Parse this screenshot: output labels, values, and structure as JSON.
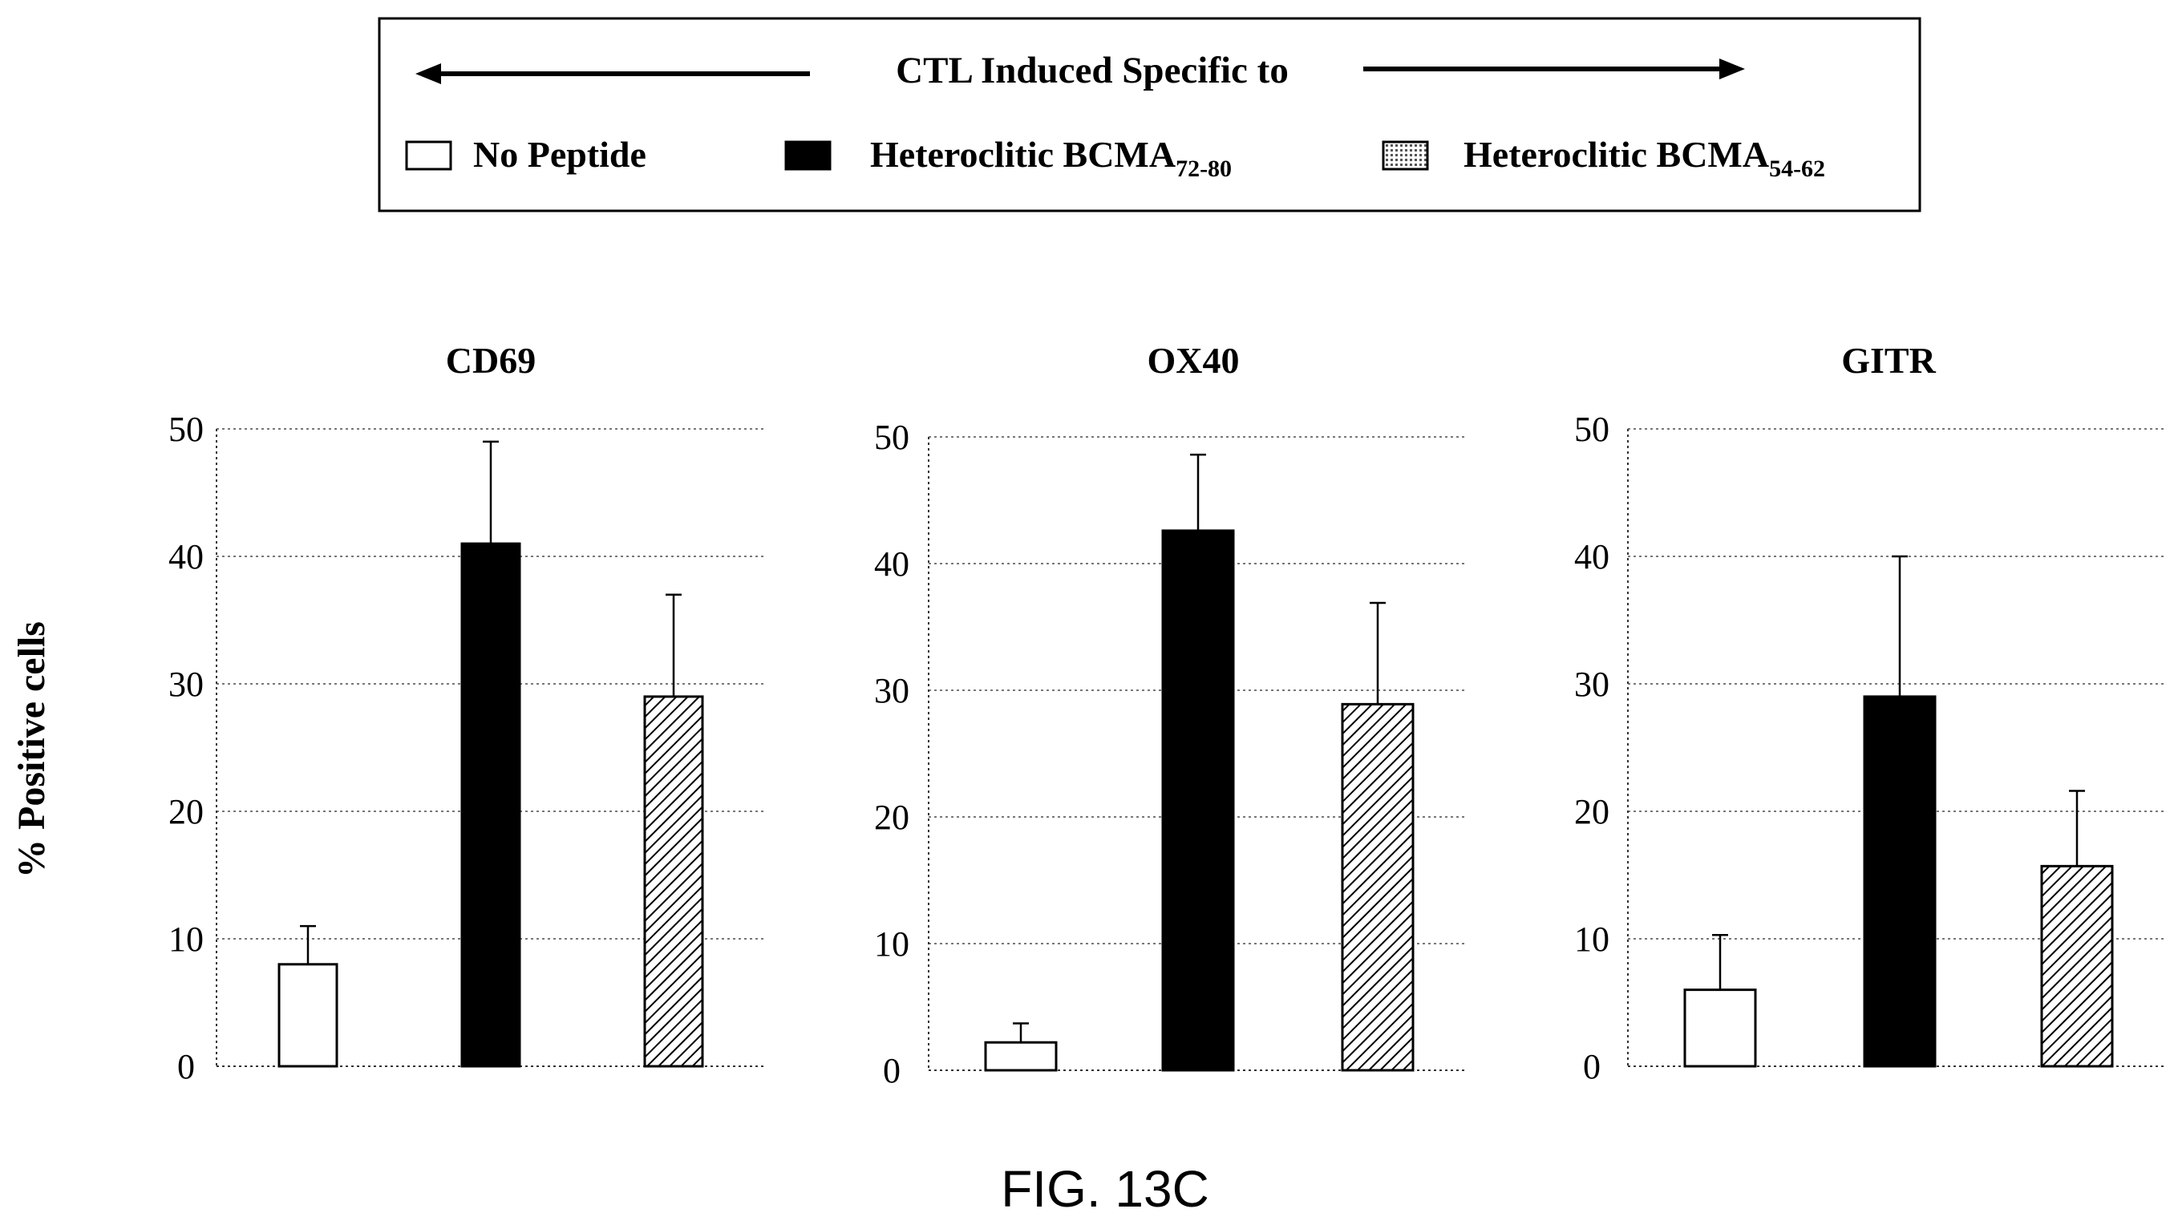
{
  "legend": {
    "heading": "CTL Induced Specific to",
    "items": [
      {
        "label": "No Peptide",
        "sub": "",
        "pattern": "white"
      },
      {
        "label": "Heteroclitic BCMA",
        "sub": "72-80",
        "pattern": "black"
      },
      {
        "label": "Heteroclitic BCMA",
        "sub": "54-62",
        "pattern": "hatch"
      }
    ]
  },
  "ylabel": "% Positive cells",
  "caption": "FIG. 13C",
  "colors": {
    "black": "#000000",
    "white": "#ffffff",
    "grid": "#777777"
  },
  "chart_data": [
    {
      "type": "bar",
      "title": "CD69",
      "ylim": [
        0,
        50
      ],
      "yticks": [
        0,
        10,
        20,
        30,
        40,
        50
      ],
      "grid": true,
      "series": [
        {
          "name": "No Peptide",
          "value": 8,
          "error": 3
        },
        {
          "name": "Heteroclitic BCMA72-80",
          "value": 41,
          "error": 8
        },
        {
          "name": "Heteroclitic BCMA54-62",
          "value": 29,
          "error": 8
        }
      ]
    },
    {
      "type": "bar",
      "title": "OX40",
      "ylim": [
        0,
        50
      ],
      "yticks": [
        0,
        10,
        20,
        30,
        40,
        50
      ],
      "grid": true,
      "series": [
        {
          "name": "No Peptide",
          "value": 2.2,
          "error": 1.5
        },
        {
          "name": "Heteroclitic BCMA72-80",
          "value": 42.6,
          "error": 6
        },
        {
          "name": "Heteroclitic BCMA54-62",
          "value": 28.9,
          "error": 8
        }
      ]
    },
    {
      "type": "bar",
      "title": "GITR",
      "ylim": [
        0,
        50
      ],
      "yticks": [
        0,
        10,
        20,
        30,
        40,
        50
      ],
      "grid": true,
      "series": [
        {
          "name": "No Peptide",
          "value": 6,
          "error": 4.3
        },
        {
          "name": "Heteroclitic BCMA72-80",
          "value": 29,
          "error": 11
        },
        {
          "name": "Heteroclitic BCMA54-62",
          "value": 15.7,
          "error": 5.9
        }
      ]
    }
  ]
}
